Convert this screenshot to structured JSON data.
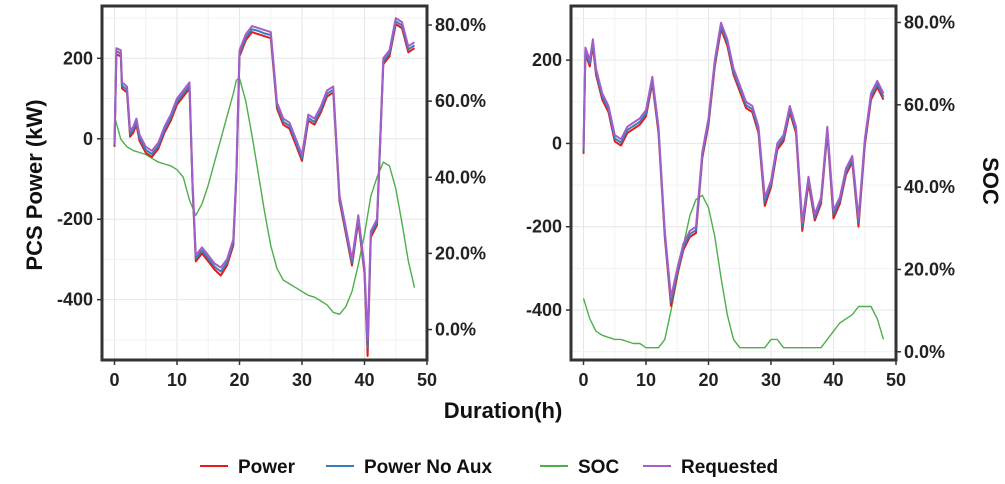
{
  "figure": {
    "ylabel_left": "PCS Power (kW)",
    "ylabel_right": "SOC",
    "xlabel": "Duration(h)",
    "legend": [
      "Power",
      "Power No Aux",
      "SOC",
      "Requested"
    ]
  },
  "colors": {
    "Power": "#e41a1c",
    "Power No Aux": "#377eb8",
    "SOC": "#4daf4a",
    "Requested": "#a35ec8"
  },
  "chart_data": [
    {
      "type": "line",
      "xlabel": "",
      "ylabel": "PCS Power (kW)",
      "y2label": "",
      "xlim": [
        -2,
        50
      ],
      "ylim": [
        -550,
        330
      ],
      "y2lim": [
        -0.08,
        0.85
      ],
      "xticks": [
        0,
        10,
        20,
        30,
        40,
        50
      ],
      "yticks": [
        200,
        0,
        -200,
        -400
      ],
      "y2ticks": [
        "80.0%",
        "60.0%",
        "40.0%",
        "20.0%",
        "0.0%"
      ],
      "y2tick_values": [
        0.8,
        0.6,
        0.4,
        0.2,
        0.0
      ],
      "grid": true,
      "series": [
        {
          "name": "Requested",
          "x": [
            0,
            0.3,
            1,
            1.2,
            2,
            2.5,
            3,
            3.5,
            4,
            5,
            6,
            7,
            8,
            9,
            10,
            11,
            12,
            12.5,
            13,
            14,
            15,
            16,
            17,
            18,
            19,
            19.5,
            20,
            21,
            22,
            23,
            24,
            25,
            26,
            27,
            28,
            29,
            30,
            31,
            32,
            33,
            34,
            35,
            36,
            37,
            38,
            39,
            40,
            40.5,
            41,
            42,
            43,
            44,
            45,
            46,
            47,
            48
          ],
          "y": [
            -10,
            225,
            220,
            140,
            130,
            20,
            30,
            50,
            10,
            -20,
            -30,
            -10,
            30,
            60,
            100,
            120,
            140,
            -110,
            -290,
            -270,
            -290,
            -310,
            -320,
            -300,
            -250,
            -80,
            220,
            260,
            280,
            275,
            270,
            265,
            90,
            50,
            40,
            0,
            -40,
            60,
            50,
            80,
            120,
            130,
            -140,
            -220,
            -300,
            -190,
            -320,
            -500,
            -230,
            -200,
            200,
            220,
            300,
            290,
            230,
            240
          ]
        },
        {
          "name": "Power",
          "x": [
            0,
            0.3,
            1,
            1.2,
            2,
            2.5,
            3,
            3.5,
            4,
            5,
            6,
            7,
            8,
            9,
            10,
            11,
            12,
            12.5,
            13,
            14,
            15,
            16,
            17,
            18,
            19,
            19.5,
            20,
            21,
            22,
            23,
            24,
            25,
            26,
            27,
            28,
            29,
            30,
            31,
            32,
            33,
            34,
            35,
            36,
            37,
            38,
            39,
            40,
            40.5,
            41,
            42,
            43,
            44,
            45,
            46,
            47,
            48
          ],
          "y": [
            -20,
            210,
            205,
            125,
            115,
            5,
            15,
            35,
            -5,
            -35,
            -45,
            -25,
            15,
            45,
            85,
            105,
            125,
            -125,
            -305,
            -285,
            -305,
            -325,
            -340,
            -315,
            -265,
            -95,
            205,
            245,
            265,
            260,
            255,
            250,
            75,
            35,
            25,
            -15,
            -55,
            45,
            35,
            65,
            105,
            115,
            -155,
            -235,
            -315,
            -205,
            -335,
            -540,
            -245,
            -215,
            185,
            205,
            285,
            275,
            215,
            225
          ]
        },
        {
          "name": "Power No Aux",
          "x": [
            0,
            0.3,
            1,
            1.2,
            2,
            2.5,
            3,
            3.5,
            4,
            5,
            6,
            7,
            8,
            9,
            10,
            11,
            12,
            12.5,
            13,
            14,
            15,
            16,
            17,
            18,
            19,
            19.5,
            20,
            21,
            22,
            23,
            24,
            25,
            26,
            27,
            28,
            29,
            30,
            31,
            32,
            33,
            34,
            35,
            36,
            37,
            38,
            39,
            40,
            40.5,
            41,
            42,
            43,
            44,
            45,
            46,
            47,
            48
          ],
          "y": [
            -15,
            218,
            212,
            132,
            122,
            12,
            22,
            42,
            2,
            -28,
            -38,
            -18,
            22,
            52,
            92,
            112,
            132,
            -118,
            -298,
            -278,
            -298,
            -318,
            -330,
            -308,
            -258,
            -88,
            212,
            252,
            272,
            268,
            262,
            258,
            82,
            42,
            32,
            -8,
            -48,
            52,
            42,
            72,
            112,
            122,
            -148,
            -228,
            -308,
            -198,
            -328,
            -520,
            -238,
            -208,
            192,
            212,
            292,
            282,
            222,
            232
          ]
        },
        {
          "name": "SOC",
          "axis": "right",
          "x": [
            0,
            1,
            2,
            3,
            4,
            5,
            6,
            7,
            8,
            9,
            10,
            11,
            12,
            13,
            14,
            15,
            16,
            17,
            18,
            19,
            19.5,
            20,
            21,
            22,
            23,
            24,
            25,
            26,
            27,
            28,
            29,
            30,
            31,
            32,
            33,
            34,
            35,
            36,
            37,
            38,
            39,
            40,
            41,
            42,
            43,
            44,
            45,
            46,
            47,
            48
          ],
          "y": [
            0.56,
            0.5,
            0.48,
            0.47,
            0.465,
            0.46,
            0.45,
            0.44,
            0.435,
            0.43,
            0.42,
            0.4,
            0.34,
            0.3,
            0.33,
            0.38,
            0.44,
            0.5,
            0.56,
            0.62,
            0.655,
            0.66,
            0.6,
            0.51,
            0.41,
            0.31,
            0.22,
            0.16,
            0.13,
            0.12,
            0.11,
            0.1,
            0.09,
            0.085,
            0.075,
            0.065,
            0.045,
            0.04,
            0.06,
            0.1,
            0.17,
            0.25,
            0.35,
            0.4,
            0.44,
            0.43,
            0.37,
            0.28,
            0.18,
            0.11
          ]
        }
      ]
    },
    {
      "type": "line",
      "xlabel": "",
      "ylabel": "",
      "y2label": "SOC",
      "xlim": [
        -2,
        50
      ],
      "ylim": [
        -520,
        330
      ],
      "y2lim": [
        -0.02,
        0.84
      ],
      "xticks": [
        0,
        10,
        20,
        30,
        40,
        50
      ],
      "yticks": [
        200,
        0,
        -200,
        -400
      ],
      "y2ticks": [
        "80.0%",
        "60.0%",
        "40.0%",
        "20.0%",
        "0.0%"
      ],
      "y2tick_values": [
        0.8,
        0.6,
        0.4,
        0.2,
        0.0
      ],
      "grid": true,
      "series": [
        {
          "name": "Requested",
          "x": [
            0,
            0.3,
            1,
            1.5,
            2,
            3,
            4,
            5,
            6,
            7,
            8,
            9,
            10,
            11,
            12,
            13,
            14,
            15,
            16,
            17,
            18,
            19,
            20,
            21,
            22,
            23,
            24,
            25,
            26,
            27,
            28,
            29,
            30,
            31,
            32,
            33,
            34,
            35,
            36,
            37,
            38,
            39,
            40,
            41,
            42,
            43,
            44,
            45,
            46,
            47,
            48
          ],
          "y": [
            -10,
            230,
            200,
            250,
            180,
            120,
            90,
            20,
            10,
            40,
            50,
            60,
            80,
            160,
            40,
            -210,
            -370,
            -300,
            -240,
            -210,
            -200,
            -20,
            60,
            200,
            290,
            250,
            180,
            140,
            100,
            90,
            40,
            -130,
            -90,
            0,
            20,
            90,
            40,
            -190,
            -80,
            -170,
            -130,
            40,
            -160,
            -130,
            -60,
            -30,
            -180,
            10,
            120,
            150,
            120
          ]
        },
        {
          "name": "Power",
          "x": [
            0,
            0.3,
            1,
            1.5,
            2,
            3,
            4,
            5,
            6,
            7,
            8,
            9,
            10,
            11,
            12,
            13,
            14,
            15,
            16,
            17,
            18,
            19,
            20,
            21,
            22,
            23,
            24,
            25,
            26,
            27,
            28,
            29,
            30,
            31,
            32,
            33,
            34,
            35,
            36,
            37,
            38,
            39,
            40,
            41,
            42,
            43,
            44,
            45,
            46,
            47,
            48
          ],
          "y": [
            -25,
            215,
            185,
            235,
            165,
            105,
            75,
            5,
            -5,
            25,
            35,
            45,
            65,
            145,
            25,
            -225,
            -390,
            -315,
            -255,
            -225,
            -215,
            -35,
            45,
            185,
            275,
            235,
            165,
            125,
            85,
            75,
            25,
            -150,
            -105,
            -15,
            5,
            75,
            25,
            -210,
            -95,
            -185,
            -145,
            25,
            -180,
            -145,
            -75,
            -45,
            -200,
            -5,
            105,
            135,
            105
          ]
        },
        {
          "name": "Power No Aux",
          "x": [
            0,
            0.3,
            1,
            1.5,
            2,
            3,
            4,
            5,
            6,
            7,
            8,
            9,
            10,
            11,
            12,
            13,
            14,
            15,
            16,
            17,
            18,
            19,
            20,
            21,
            22,
            23,
            24,
            25,
            26,
            27,
            28,
            29,
            30,
            31,
            32,
            33,
            34,
            35,
            36,
            37,
            38,
            39,
            40,
            41,
            42,
            43,
            44,
            45,
            46,
            47,
            48
          ],
          "y": [
            -18,
            222,
            192,
            242,
            172,
            112,
            82,
            12,
            2,
            32,
            42,
            52,
            72,
            152,
            32,
            -218,
            -380,
            -308,
            -248,
            -218,
            -208,
            -28,
            52,
            192,
            282,
            242,
            172,
            132,
            92,
            82,
            32,
            -140,
            -98,
            -8,
            12,
            82,
            32,
            -200,
            -88,
            -178,
            -138,
            32,
            -170,
            -138,
            -68,
            -38,
            -190,
            2,
            112,
            142,
            112
          ]
        },
        {
          "name": "SOC",
          "axis": "right",
          "x": [
            0,
            1,
            2,
            3,
            4,
            5,
            6,
            7,
            8,
            9,
            10,
            11,
            12,
            13,
            14,
            15,
            16,
            17,
            18,
            19,
            20,
            21,
            22,
            23,
            24,
            25,
            26,
            27,
            28,
            29,
            30,
            31,
            32,
            33,
            34,
            35,
            36,
            37,
            38,
            39,
            40,
            41,
            42,
            43,
            44,
            45,
            46,
            47,
            48
          ],
          "y": [
            0.13,
            0.08,
            0.05,
            0.04,
            0.035,
            0.03,
            0.03,
            0.025,
            0.02,
            0.02,
            0.01,
            0.01,
            0.01,
            0.03,
            0.1,
            0.18,
            0.26,
            0.33,
            0.37,
            0.38,
            0.35,
            0.28,
            0.18,
            0.09,
            0.03,
            0.01,
            0.01,
            0.01,
            0.01,
            0.01,
            0.03,
            0.03,
            0.01,
            0.01,
            0.01,
            0.01,
            0.01,
            0.01,
            0.01,
            0.03,
            0.05,
            0.07,
            0.08,
            0.09,
            0.11,
            0.11,
            0.11,
            0.08,
            0.03
          ]
        }
      ]
    }
  ]
}
